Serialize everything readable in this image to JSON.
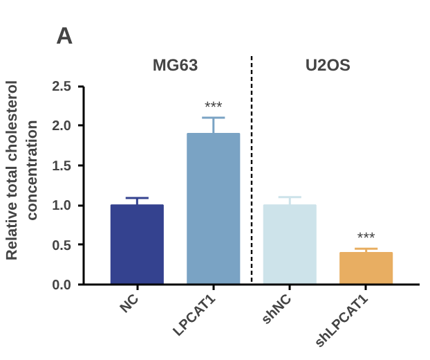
{
  "chart_data": {
    "type": "bar",
    "title": "A",
    "ylabel": "Relative total cholesterol\nconcentration",
    "categories": [
      "NC",
      "LPCAT1",
      "shNC",
      "shLPCAT1"
    ],
    "values": [
      1.0,
      1.9,
      1.0,
      0.4
    ],
    "colors": [
      "#34428f",
      "#7aa3c4",
      "#cde3ea",
      "#e8ae62"
    ],
    "errors": [
      [
        1.0,
        1.09
      ],
      [
        1.9,
        2.1
      ],
      [
        1.0,
        1.1
      ],
      [
        0.4,
        0.45
      ]
    ],
    "ylim": [
      0,
      2.5
    ],
    "yticks": [
      {
        "value": 0,
        "label": "0.0"
      },
      {
        "value": 0.5,
        "label": "0.5"
      },
      {
        "value": 1,
        "label": "1.0"
      },
      {
        "value": 1.5,
        "label": "1.5"
      },
      {
        "value": 2,
        "label": "2.0"
      },
      {
        "value": 2.5,
        "label": "2.5"
      }
    ],
    "annotations": [
      "MG63",
      "U2OS",
      {
        "text": "***",
        "x": "LPCAT1",
        "y": 2.12
      },
      {
        "text": "***",
        "x": "shLPCAT1",
        "y": 0.47
      }
    ],
    "grid": false
  }
}
